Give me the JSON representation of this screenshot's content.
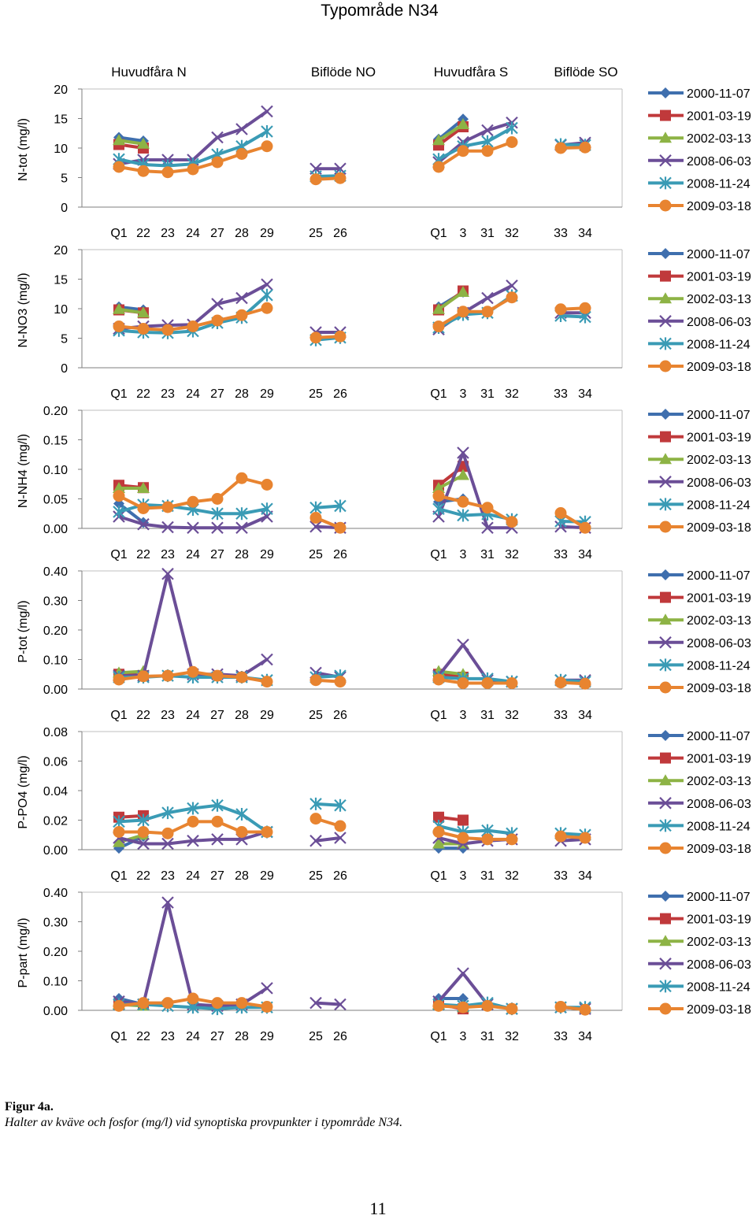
{
  "caption": {
    "label": "Figur 4a.",
    "text": "Halter av kväve och fosfor (mg/l) vid synoptiska provpunkter i typområde N34."
  },
  "page_number": "11",
  "colors": {
    "2000-11-07": "#3F6FAE",
    "2001-03-19": "#C0393B",
    "2002-03-13": "#8DB345",
    "2008-06-03": "#6B4E97",
    "2008-11-24": "#3A9BB5",
    "2009-03-18": "#E88430"
  },
  "chart_data": {
    "type": "line",
    "title": "Typområde N34",
    "group_labels": [
      "Huvudfåra N",
      "Biflöde NO",
      "Huvudfåra S",
      "Biflöde SO"
    ],
    "categories": [
      "Q1",
      "22",
      "23",
      "24",
      "27",
      "28",
      "29",
      "25",
      "26",
      "Q1",
      "3",
      "31",
      "32",
      "33",
      "34"
    ],
    "legend": [
      "2000-11-07",
      "2001-03-19",
      "2002-03-13",
      "2008-06-03",
      "2008-11-24",
      "2009-03-18"
    ],
    "panels": [
      {
        "ylabel": "N-tot (mg/l)",
        "ylim": [
          0,
          20
        ],
        "ticks": [
          "0",
          "5",
          "10",
          "15",
          "20"
        ],
        "series": [
          {
            "name": "2000-11-07",
            "values": [
              11.8,
              11.2,
              null,
              null,
              null,
              null,
              null,
              null,
              null,
              11.5,
              14.9,
              null,
              null,
              null,
              null
            ]
          },
          {
            "name": "2001-03-19",
            "values": [
              10.6,
              10.0,
              null,
              null,
              null,
              null,
              null,
              null,
              null,
              10.5,
              13.6,
              null,
              null,
              null,
              null
            ]
          },
          {
            "name": "2002-03-13",
            "values": [
              11.3,
              10.7,
              null,
              null,
              null,
              null,
              null,
              null,
              null,
              11.3,
              14.0,
              null,
              null,
              null,
              null
            ]
          },
          {
            "name": "2008-06-03",
            "values": [
              7.3,
              8.0,
              8.0,
              8.0,
              11.8,
              13.2,
              16.2,
              6.5,
              6.5,
              7.6,
              11.0,
              13.0,
              14.3,
              10.5,
              10.9
            ]
          },
          {
            "name": "2008-11-24",
            "values": [
              8.1,
              7.2,
              7.0,
              7.3,
              8.9,
              10.3,
              12.8,
              5.2,
              5.3,
              8.1,
              10.3,
              11.1,
              13.4,
              10.6,
              10.5
            ]
          },
          {
            "name": "2009-03-18",
            "values": [
              6.8,
              6.1,
              5.9,
              6.4,
              7.6,
              9.0,
              10.3,
              4.7,
              4.9,
              6.8,
              9.5,
              9.5,
              11.0,
              10.0,
              10.1
            ]
          }
        ]
      },
      {
        "ylabel": "N-NO3 (mg/l)",
        "ylim": [
          0,
          20
        ],
        "ticks": [
          "0",
          "5",
          "10",
          "15",
          "20"
        ],
        "series": [
          {
            "name": "2000-11-07",
            "values": [
              10.3,
              9.8,
              null,
              null,
              null,
              null,
              null,
              null,
              null,
              10.3,
              12.8,
              null,
              null,
              null,
              null
            ]
          },
          {
            "name": "2001-03-19",
            "values": [
              9.8,
              9.3,
              null,
              null,
              null,
              null,
              null,
              null,
              null,
              9.8,
              13.0,
              null,
              null,
              null,
              null
            ]
          },
          {
            "name": "2002-03-13",
            "values": [
              9.9,
              9.3,
              null,
              null,
              null,
              null,
              null,
              null,
              null,
              9.9,
              12.8,
              null,
              null,
              null,
              null
            ]
          },
          {
            "name": "2008-06-03",
            "values": [
              6.6,
              7.0,
              7.2,
              7.3,
              10.8,
              11.8,
              14.1,
              6.0,
              6.0,
              6.5,
              9.3,
              11.8,
              13.9,
              9.3,
              9.3
            ]
          },
          {
            "name": "2008-11-24",
            "values": [
              6.3,
              6.0,
              5.9,
              6.2,
              7.6,
              8.5,
              12.3,
              4.7,
              5.1,
              6.8,
              9.0,
              9.3,
              12.2,
              8.8,
              8.6
            ]
          },
          {
            "name": "2009-03-18",
            "values": [
              7.0,
              6.6,
              6.4,
              7.0,
              8.0,
              8.9,
              10.1,
              5.1,
              5.3,
              7.0,
              9.5,
              9.5,
              11.9,
              9.9,
              10.1
            ]
          }
        ]
      },
      {
        "ylabel": "N-NH4 (mg/l)",
        "ylim": [
          0,
          0.2
        ],
        "ticks": [
          "0.00",
          "0.05",
          "0.10",
          "0.15",
          "0.20"
        ],
        "series": [
          {
            "name": "2000-11-07",
            "values": [
              0.042,
              0.01,
              null,
              null,
              null,
              null,
              null,
              null,
              null,
              0.045,
              0.05,
              null,
              null,
              null,
              null
            ]
          },
          {
            "name": "2001-03-19",
            "values": [
              0.073,
              0.069,
              null,
              null,
              null,
              null,
              null,
              null,
              null,
              0.073,
              0.105,
              null,
              null,
              null,
              null
            ]
          },
          {
            "name": "2002-03-13",
            "values": [
              0.068,
              0.068,
              null,
              null,
              null,
              null,
              null,
              null,
              null,
              0.068,
              0.09,
              null,
              null,
              null,
              null
            ]
          },
          {
            "name": "2008-06-03",
            "values": [
              0.02,
              0.007,
              0.002,
              0.001,
              0.001,
              0.001,
              0.02,
              0.003,
              0.001,
              0.02,
              0.128,
              0.001,
              0.001,
              0.003,
              0.001
            ]
          },
          {
            "name": "2008-11-24",
            "values": [
              0.028,
              0.04,
              0.038,
              0.032,
              0.025,
              0.025,
              0.033,
              0.035,
              0.038,
              0.033,
              0.022,
              0.024,
              0.015,
              0.012,
              0.011
            ]
          },
          {
            "name": "2009-03-18",
            "values": [
              0.055,
              0.034,
              0.036,
              0.045,
              0.05,
              0.085,
              0.074,
              0.018,
              0.001,
              0.055,
              0.045,
              0.035,
              0.011,
              0.026,
              0.001
            ]
          }
        ]
      },
      {
        "ylabel": "P-tot (mg/l)",
        "ylim": [
          0,
          0.4
        ],
        "ticks": [
          "0.00",
          "0.10",
          "0.20",
          "0.30",
          "0.40"
        ],
        "series": [
          {
            "name": "2000-11-07",
            "values": [
              0.055,
              0.045,
              null,
              null,
              null,
              null,
              null,
              null,
              null,
              0.05,
              0.04,
              null,
              null,
              null,
              null
            ]
          },
          {
            "name": "2001-03-19",
            "values": [
              0.05,
              0.045,
              null,
              null,
              null,
              null,
              null,
              null,
              null,
              0.05,
              0.04,
              null,
              null,
              null,
              null
            ]
          },
          {
            "name": "2002-03-13",
            "values": [
              0.055,
              0.06,
              null,
              null,
              null,
              null,
              null,
              null,
              null,
              0.06,
              0.05,
              null,
              null,
              null,
              null
            ]
          },
          {
            "name": "2008-06-03",
            "values": [
              0.045,
              0.045,
              0.39,
              0.05,
              0.05,
              0.045,
              0.1,
              0.055,
              0.04,
              0.045,
              0.15,
              0.03,
              0.025,
              0.03,
              0.03
            ]
          },
          {
            "name": "2008-11-24",
            "values": [
              0.04,
              0.04,
              0.045,
              0.04,
              0.04,
              0.04,
              0.03,
              0.04,
              0.045,
              0.04,
              0.035,
              0.035,
              0.025,
              0.03,
              0.025
            ]
          },
          {
            "name": "2009-03-18",
            "values": [
              0.032,
              0.043,
              0.045,
              0.058,
              0.045,
              0.04,
              0.025,
              0.03,
              0.025,
              0.032,
              0.02,
              0.02,
              0.02,
              0.022,
              0.018
            ]
          }
        ]
      },
      {
        "ylabel": "P-PO4 (mg/l)",
        "ylim": [
          0,
          0.08
        ],
        "ticks": [
          "0.00",
          "0.02",
          "0.04",
          "0.06",
          "0.08"
        ],
        "series": [
          {
            "name": "2000-11-07",
            "values": [
              0.001,
              0.009,
              null,
              null,
              null,
              null,
              null,
              null,
              null,
              0.001,
              0.001,
              null,
              null,
              null,
              null
            ]
          },
          {
            "name": "2001-03-19",
            "values": [
              0.022,
              0.023,
              null,
              null,
              null,
              null,
              null,
              null,
              null,
              0.022,
              0.02,
              null,
              null,
              null,
              null
            ]
          },
          {
            "name": "2002-03-13",
            "values": [
              0.005,
              0.01,
              null,
              null,
              null,
              null,
              null,
              null,
              null,
              0.004,
              0.004,
              null,
              null,
              null,
              null
            ]
          },
          {
            "name": "2008-06-03",
            "values": [
              0.008,
              0.004,
              0.004,
              0.006,
              0.007,
              0.007,
              0.012,
              0.006,
              0.008,
              0.008,
              0.004,
              0.006,
              0.007,
              0.006,
              0.007
            ]
          },
          {
            "name": "2008-11-24",
            "values": [
              0.019,
              0.02,
              0.025,
              0.028,
              0.03,
              0.024,
              0.012,
              0.031,
              0.03,
              0.016,
              0.012,
              0.013,
              0.011,
              0.011,
              0.01
            ]
          },
          {
            "name": "2009-03-18",
            "values": [
              0.012,
              0.012,
              0.011,
              0.019,
              0.019,
              0.012,
              0.012,
              0.021,
              0.016,
              0.012,
              0.008,
              0.007,
              0.007,
              0.009,
              0.008
            ]
          }
        ]
      },
      {
        "ylabel": "P-part (mg/l)",
        "ylim": [
          0,
          0.4
        ],
        "ticks": [
          "0.00",
          "0.10",
          "0.20",
          "0.30",
          "0.40"
        ],
        "series": [
          {
            "name": "2000-11-07",
            "values": [
              0.04,
              0.02,
              null,
              null,
              null,
              null,
              null,
              null,
              null,
              0.04,
              0.04,
              null,
              null,
              null,
              null
            ]
          },
          {
            "name": "2001-03-19",
            "values": [
              0.02,
              0.02,
              null,
              null,
              null,
              null,
              null,
              null,
              null,
              0.02,
              0.005,
              null,
              null,
              null,
              null
            ]
          },
          {
            "name": "2002-03-13",
            "values": [
              0.02,
              0.015,
              null,
              null,
              null,
              null,
              null,
              null,
              null,
              0.02,
              0.01,
              null,
              null,
              null,
              null
            ]
          },
          {
            "name": "2008-06-03",
            "values": [
              0.03,
              0.02,
              0.365,
              0.02,
              0.015,
              0.02,
              0.075,
              0.025,
              0.02,
              0.03,
              0.125,
              0.02,
              0.005,
              0.01,
              0.005
            ]
          },
          {
            "name": "2008-11-24",
            "values": [
              0.02,
              0.02,
              0.015,
              0.01,
              0.005,
              0.01,
              0.01,
              null,
              null,
              0.02,
              0.015,
              0.025,
              0.005,
              0.01,
              0.01
            ]
          },
          {
            "name": "2009-03-18",
            "values": [
              0.015,
              0.025,
              0.025,
              0.04,
              0.025,
              0.025,
              0.012,
              null,
              null,
              0.015,
              0.01,
              0.015,
              0.005,
              0.012,
              0.002
            ]
          }
        ]
      }
    ]
  }
}
